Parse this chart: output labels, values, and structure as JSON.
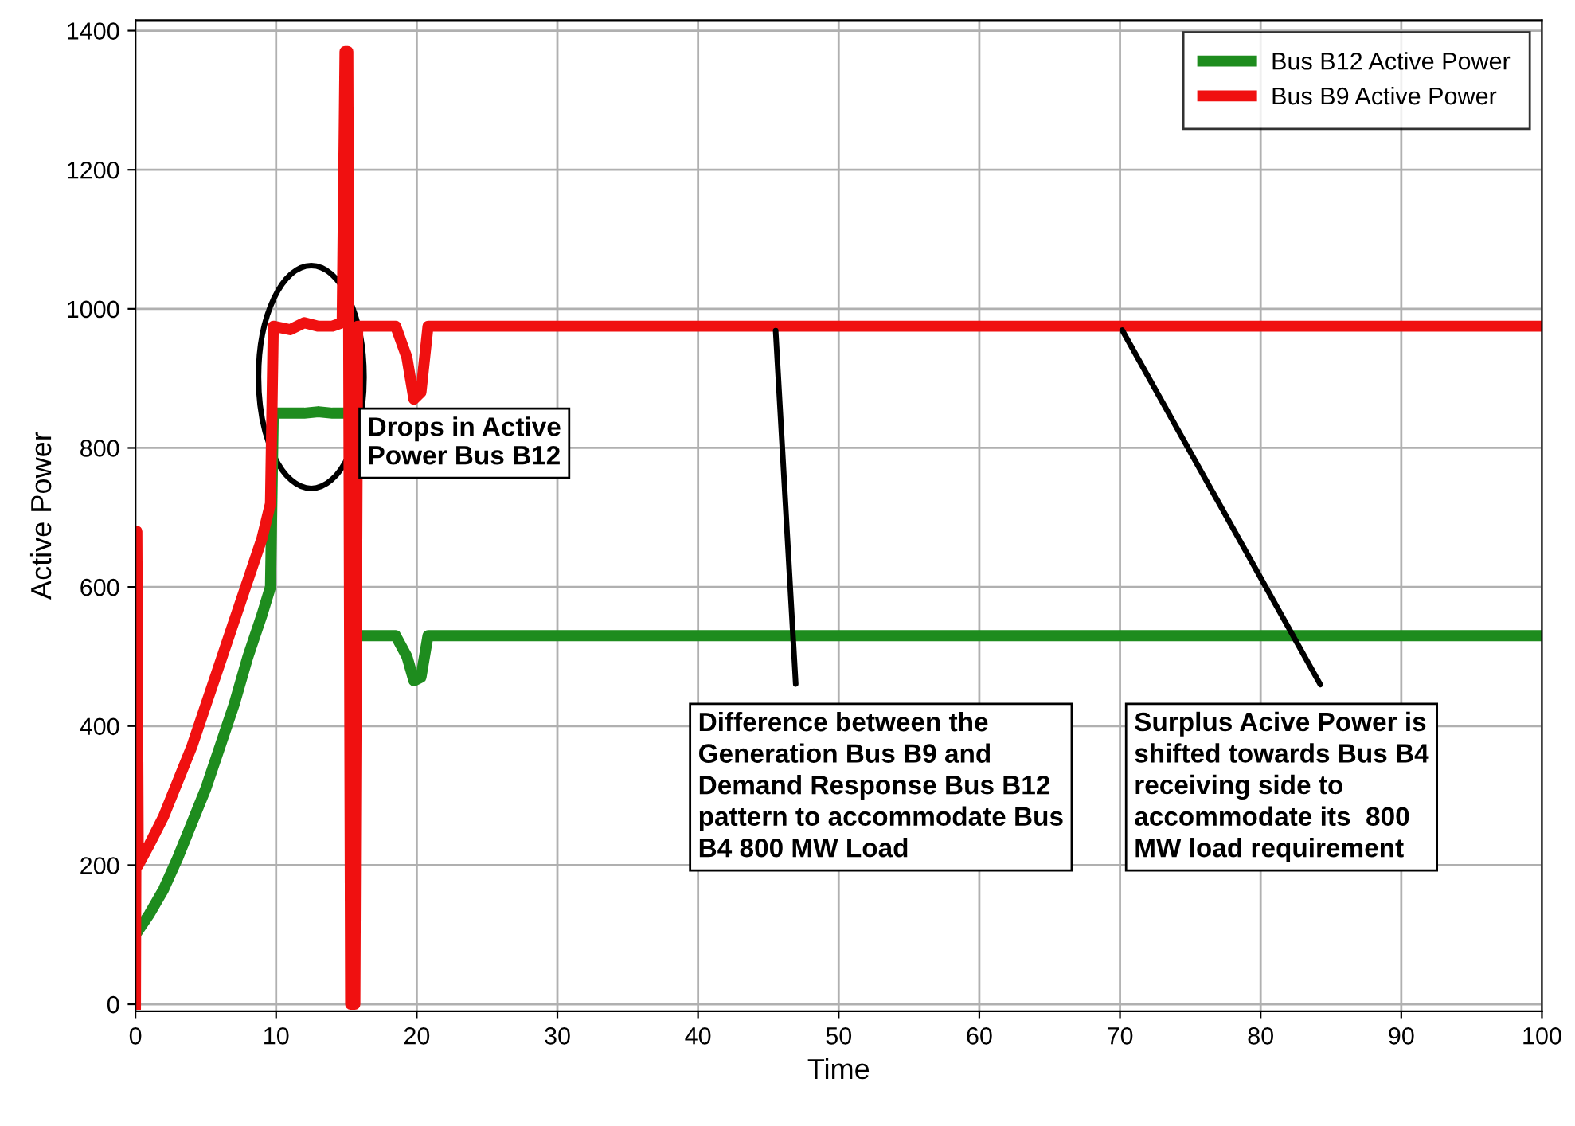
{
  "chart_data": {
    "type": "line",
    "xlabel": "Time",
    "ylabel": "Active Power",
    "xlim": [
      0,
      100
    ],
    "ylim": [
      -10,
      1415
    ],
    "xticks": [
      0,
      10,
      20,
      30,
      40,
      50,
      60,
      70,
      80,
      90,
      100
    ],
    "yticks": [
      0,
      200,
      400,
      600,
      800,
      1000,
      1200,
      1400
    ],
    "grid": true,
    "legend": "top right",
    "series": [
      {
        "name": "Bus B12 Active Power",
        "color": "#1e8c1e",
        "x": [
          0,
          1,
          2,
          3,
          4,
          5,
          6,
          7,
          8,
          9,
          9.6,
          9.8,
          11,
          12,
          13,
          14,
          14.5,
          15.5,
          15.8,
          17,
          18.5,
          19.3,
          19.8,
          20.3,
          20.8,
          22,
          30,
          40,
          50,
          60,
          70,
          80,
          90,
          100
        ],
        "values": [
          100,
          130,
          165,
          210,
          260,
          310,
          370,
          430,
          500,
          560,
          600,
          850,
          850,
          850,
          852,
          850,
          850,
          null,
          530,
          530,
          530,
          500,
          465,
          470,
          530,
          530,
          530,
          530,
          530,
          530,
          530,
          530,
          530,
          530
        ]
      },
      {
        "name": "Bus B9 Active Power",
        "color": "#f01010",
        "x": [
          0,
          0.1,
          0.2,
          1,
          2,
          3,
          4,
          5,
          6,
          7,
          8,
          9,
          9.6,
          9.8,
          11,
          12,
          13,
          14,
          14.7,
          14.9,
          15.1,
          15.3,
          15.6,
          15.8,
          17,
          18.5,
          19.3,
          19.8,
          20.3,
          20.8,
          22,
          30,
          40,
          50,
          60,
          70,
          80,
          90,
          100
        ],
        "values": [
          0,
          680,
          200,
          230,
          270,
          320,
          370,
          430,
          490,
          550,
          610,
          670,
          720,
          975,
          970,
          980,
          975,
          975,
          980,
          1370,
          1370,
          0,
          0,
          975,
          975,
          975,
          930,
          870,
          880,
          975,
          975,
          975,
          975,
          975,
          975,
          975,
          975,
          975,
          975
        ]
      }
    ],
    "annotations": [
      "Drops in Active\nPower Bus B12",
      {
        "text": "Difference between the\nGeneration Bus B9 and\nDemand Response Bus B12\npattern to accommodate Bus\nB4 800 MW Load",
        "x": 45.5,
        "y": 975
      },
      {
        "text": "Surplus Acive Power is\nshifted towards Bus B4\nreceiving side to\naccommodate its  800\nMW load requirement",
        "x": 70,
        "y": 975
      }
    ]
  }
}
